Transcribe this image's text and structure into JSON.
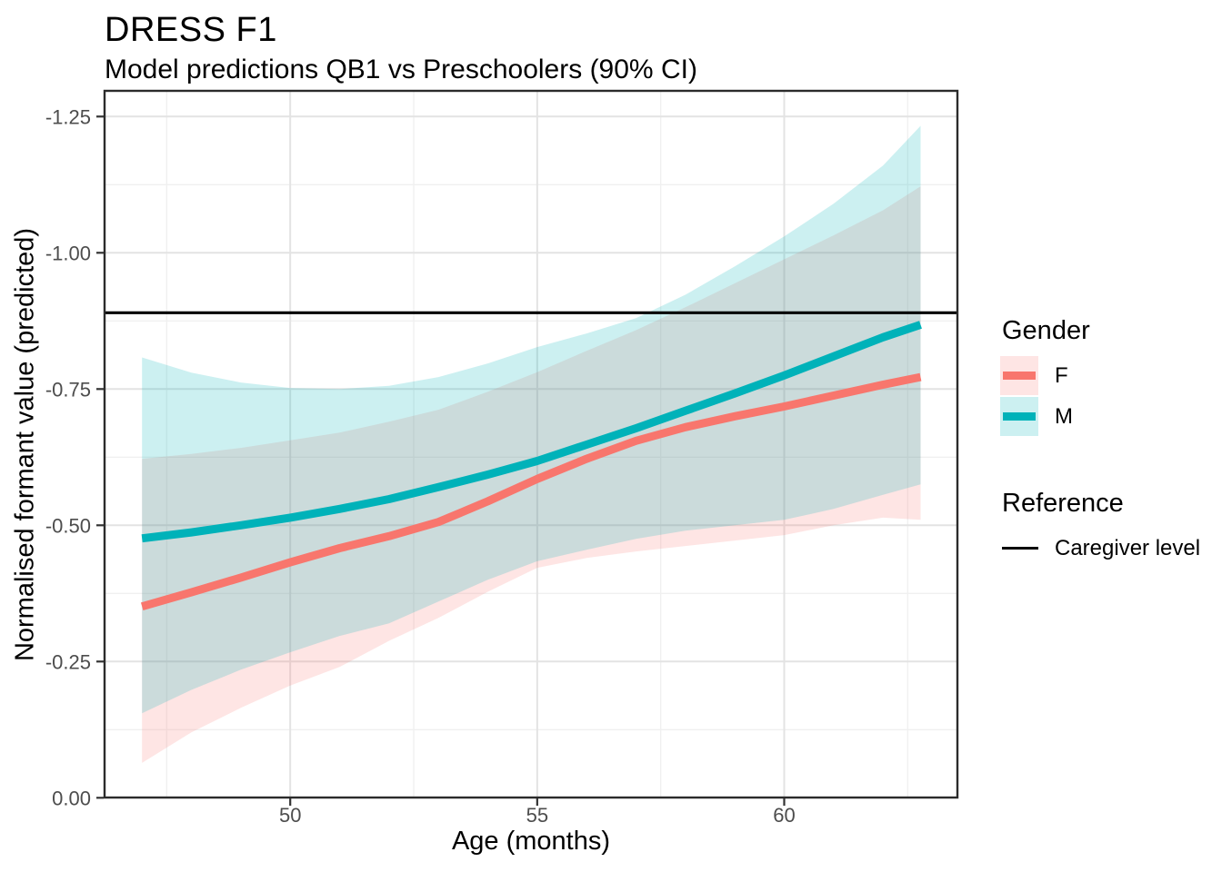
{
  "chart_data": {
    "type": "line",
    "title": "DRESS F1",
    "subtitle": "Model predictions QB1 vs Preschoolers (90% CI)",
    "xlabel": "Age (months)",
    "ylabel": "Normalised formant value (predicted)",
    "x_axis": {
      "tick_values": [
        50,
        55,
        60
      ],
      "tick_labels": [
        "50",
        "55",
        "60"
      ],
      "minor_ticks": [
        47.5,
        52.5,
        57.5,
        62.5
      ],
      "domain": [
        46.25,
        63.5
      ]
    },
    "y_axis": {
      "reversed": true,
      "tick_values": [
        -1.25,
        -1.0,
        -0.75,
        -0.5,
        -0.25,
        0.0
      ],
      "tick_labels": [
        "-1.25",
        "-1.00",
        "-0.75",
        "-0.50",
        "-0.25",
        "0.00"
      ],
      "minor_ticks": [
        -1.125,
        -0.875,
        -0.625,
        -0.375,
        -0.125
      ],
      "domain_top": -1.2972,
      "domain_bottom": 0.0
    },
    "x": [
      47,
      48,
      49,
      50,
      51,
      52,
      53,
      54,
      55,
      56,
      57,
      58,
      59,
      60,
      61,
      62,
      62.76
    ],
    "series": [
      {
        "name": "F",
        "color": "#F8766D",
        "fill": "rgba(248,118,109,0.19)",
        "values": [
          -0.351,
          -0.377,
          -0.404,
          -0.432,
          -0.458,
          -0.48,
          -0.506,
          -0.544,
          -0.585,
          -0.622,
          -0.655,
          -0.68,
          -0.7,
          -0.718,
          -0.738,
          -0.758,
          -0.772
        ],
        "upper": [
          -0.622,
          -0.631,
          -0.642,
          -0.656,
          -0.67,
          -0.69,
          -0.712,
          -0.745,
          -0.781,
          -0.82,
          -0.858,
          -0.9,
          -0.944,
          -0.988,
          -1.032,
          -1.078,
          -1.122
        ],
        "lower": [
          -0.064,
          -0.12,
          -0.165,
          -0.206,
          -0.24,
          -0.288,
          -0.33,
          -0.378,
          -0.422,
          -0.44,
          -0.452,
          -0.462,
          -0.472,
          -0.482,
          -0.5,
          -0.514,
          -0.51
        ]
      },
      {
        "name": "M",
        "color": "#00B2B9",
        "fill": "rgba(0,178,185,0.20)",
        "values": [
          -0.476,
          -0.487,
          -0.5,
          -0.514,
          -0.53,
          -0.548,
          -0.57,
          -0.593,
          -0.618,
          -0.648,
          -0.678,
          -0.71,
          -0.742,
          -0.775,
          -0.81,
          -0.845,
          -0.868
        ],
        "upper": [
          -0.808,
          -0.78,
          -0.762,
          -0.752,
          -0.75,
          -0.756,
          -0.772,
          -0.797,
          -0.827,
          -0.852,
          -0.88,
          -0.923,
          -0.975,
          -1.03,
          -1.09,
          -1.16,
          -1.233
        ],
        "lower": [
          -0.155,
          -0.198,
          -0.235,
          -0.267,
          -0.297,
          -0.32,
          -0.36,
          -0.4,
          -0.434,
          -0.455,
          -0.475,
          -0.49,
          -0.5,
          -0.51,
          -0.53,
          -0.556,
          -0.575
        ]
      }
    ],
    "reference_line": {
      "value": -0.89,
      "color": "#000000"
    },
    "legend": {
      "gender_title": "Gender",
      "items": [
        {
          "label": "F"
        },
        {
          "label": "M"
        }
      ],
      "reference_title": "Reference",
      "reference_label": "Caregiver level"
    },
    "style": {
      "grid_major": "#E3E3E3",
      "grid_minor": "#F0F0F0",
      "panel_border": "#2B2B2B",
      "tick_color": "#333333",
      "tick_label_color": "#4D4D4D"
    }
  }
}
